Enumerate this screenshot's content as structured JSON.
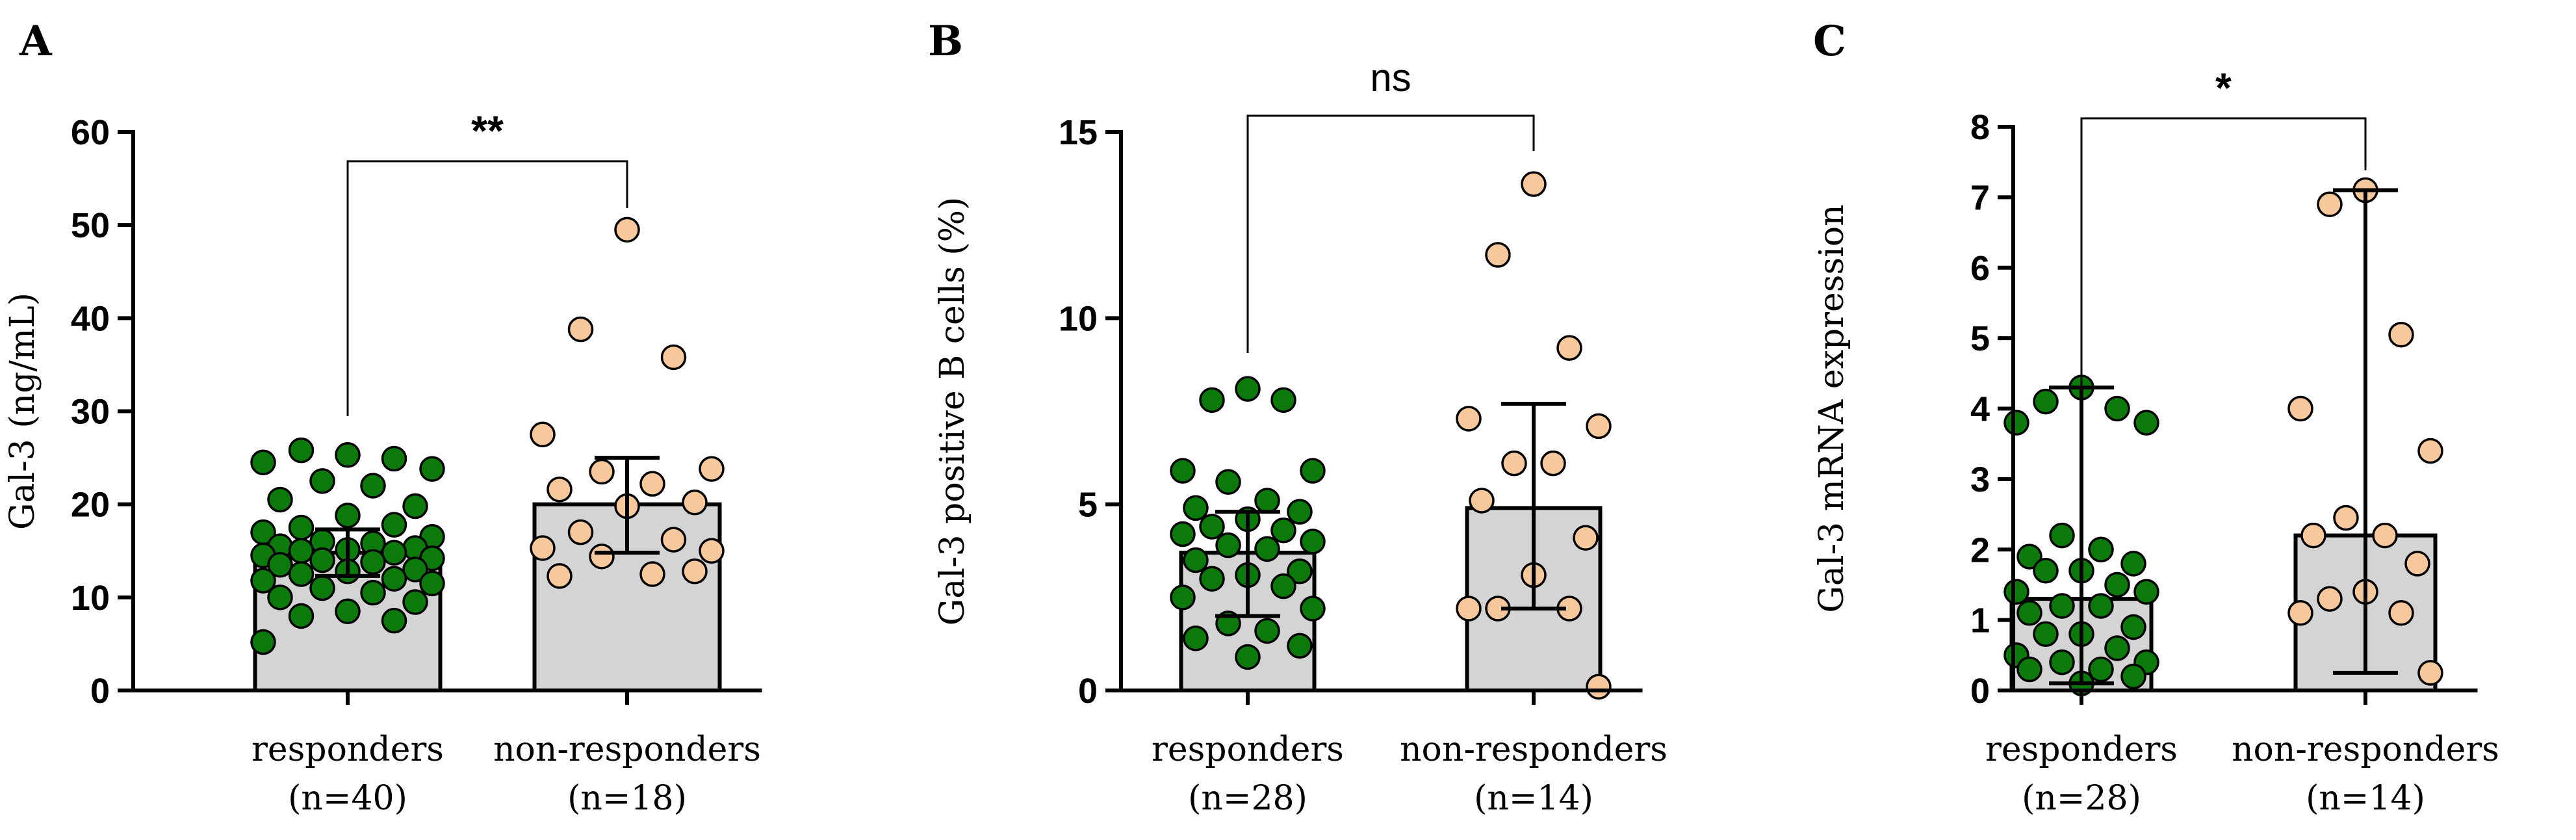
{
  "colors": {
    "responders": "#0b7a0b",
    "non_responders": "#f7c89b",
    "bar": "#d4d4d4",
    "ink": "#000000"
  },
  "chart_data": [
    {
      "type": "bar",
      "panel_label": "A",
      "ylabel": "Gal-3 (ng/mL)",
      "ylim": [
        0,
        60
      ],
      "yticks": [
        0,
        10,
        20,
        30,
        40,
        50,
        60
      ],
      "categories": [
        {
          "name": "responders",
          "n": "(n=40)"
        },
        {
          "name": "non-responders",
          "n": "(n=18)"
        }
      ],
      "values": [
        14.8,
        20.0
      ],
      "error_bars": [
        [
          12.3,
          17.3
        ],
        [
          14.8,
          25.0
        ]
      ],
      "significance": "**",
      "points": [
        [
          25.3,
          25.8,
          24.9,
          24.5,
          23.8,
          22.5,
          22.0,
          20.5,
          19.8,
          18.8,
          17.5,
          17.8,
          17.0,
          16.5,
          16.0,
          15.8,
          15.5,
          15.3,
          15.1,
          15.0,
          14.8,
          14.5,
          14.2,
          14.0,
          13.8,
          13.5,
          13.0,
          12.8,
          12.5,
          12.0,
          11.8,
          11.5,
          11.0,
          10.5,
          10.0,
          9.5,
          8.5,
          8.0,
          7.5,
          5.2
        ],
        [
          49.5,
          38.8,
          35.8,
          27.5,
          23.8,
          23.5,
          22.2,
          21.6,
          20.2,
          19.8,
          17.0,
          16.2,
          15.3,
          15.0,
          14.4,
          12.5,
          12.3,
          12.8
        ]
      ]
    },
    {
      "type": "bar",
      "panel_label": "B",
      "ylabel": "Gal-3 positive B cells (%)",
      "ylim": [
        0,
        15
      ],
      "yticks": [
        0,
        5,
        10,
        15
      ],
      "categories": [
        {
          "name": "responders",
          "n": "(n=28)"
        },
        {
          "name": "non-responders",
          "n": "(n=14)"
        }
      ],
      "values": [
        3.7,
        4.9
      ],
      "error_bars": [
        [
          2.0,
          4.8
        ],
        [
          2.2,
          7.7
        ]
      ],
      "significance": "ns",
      "points": [
        [
          8.1,
          7.8,
          7.8,
          5.9,
          5.9,
          5.6,
          5.1,
          4.9,
          4.8,
          4.6,
          4.4,
          4.3,
          4.2,
          4.0,
          3.9,
          3.8,
          3.5,
          3.2,
          3.1,
          3.0,
          2.8,
          2.5,
          2.2,
          1.8,
          1.6,
          1.4,
          1.2,
          0.9
        ],
        [
          13.6,
          11.7,
          9.2,
          7.3,
          7.1,
          6.1,
          6.1,
          5.1,
          4.1,
          3.1,
          2.2,
          2.2,
          2.2,
          0.1
        ]
      ]
    },
    {
      "type": "bar",
      "panel_label": "C",
      "ylabel": "Gal-3 mRNA expression",
      "ylim": [
        0,
        8
      ],
      "yticks": [
        0,
        1,
        2,
        3,
        4,
        5,
        6,
        7,
        8
      ],
      "categories": [
        {
          "name": "responders",
          "n": "(n=28)"
        },
        {
          "name": "non-responders",
          "n": "(n=14)"
        }
      ],
      "values": [
        1.3,
        2.2
      ],
      "error_bars": [
        [
          0.1,
          4.3
        ],
        [
          0.25,
          7.1
        ]
      ],
      "significance": "*",
      "points": [
        [
          4.3,
          4.1,
          4.0,
          3.8,
          3.8,
          2.2,
          2.0,
          1.9,
          1.8,
          1.7,
          1.7,
          1.5,
          1.4,
          1.4,
          1.2,
          1.2,
          1.1,
          0.9,
          0.8,
          0.8,
          0.6,
          0.5,
          0.4,
          0.4,
          0.3,
          0.3,
          0.2,
          0.1
        ],
        [
          7.1,
          6.9,
          5.05,
          4.0,
          3.4,
          2.45,
          2.2,
          2.2,
          1.8,
          1.4,
          1.3,
          1.1,
          1.1,
          0.25
        ]
      ]
    }
  ]
}
